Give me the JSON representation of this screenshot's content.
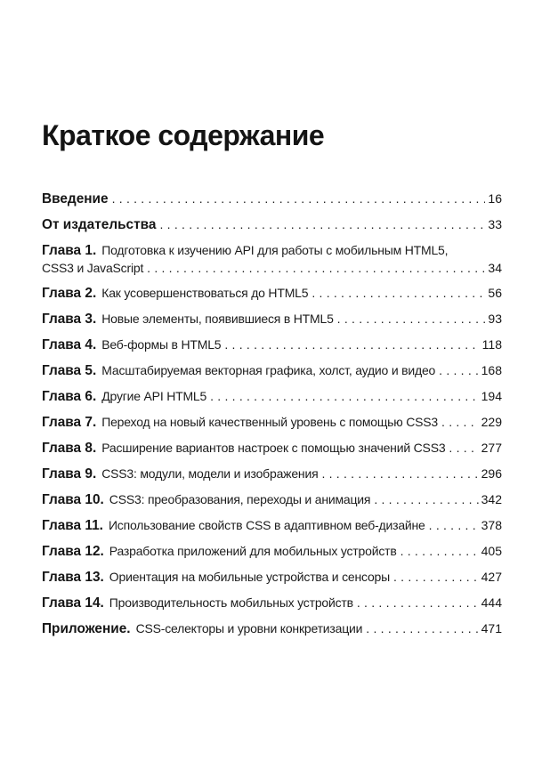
{
  "page_title": "Краткое содержание",
  "toc": {
    "entries": [
      {
        "label": "Введение",
        "page": "16"
      },
      {
        "label": "От издательства",
        "page": "33"
      },
      {
        "label": "Глава 1.",
        "text": "Подготовка к изучению API для работы с мобильным HTML5,",
        "text2": "CSS3 и JavaScript",
        "page": "34"
      },
      {
        "label": "Глава 2.",
        "text": "Как усовершенствоваться до HTML5",
        "page": "56"
      },
      {
        "label": "Глава 3.",
        "text": "Новые элементы, появившиеся в HTML5",
        "page": "93"
      },
      {
        "label": "Глава 4.",
        "text": "Веб-формы в HTML5",
        "page": "118"
      },
      {
        "label": "Глава 5.",
        "text": "Масштабируемая векторная графика, холст, аудио и видео",
        "page": "168"
      },
      {
        "label": "Глава 6.",
        "text": "Другие API HTML5",
        "page": "194"
      },
      {
        "label": "Глава 7.",
        "text": "Переход на новый качественный уровень с помощью CSS3",
        "page": "229"
      },
      {
        "label": "Глава 8.",
        "text": "Расширение вариантов настроек с помощью значений CSS3",
        "page": "277"
      },
      {
        "label": "Глава 9.",
        "text": "CSS3: модули, модели и изображения",
        "page": "296"
      },
      {
        "label": "Глава 10.",
        "text": "CSS3: преобразования, переходы и анимация",
        "page": "342"
      },
      {
        "label": "Глава 11.",
        "text": "Использование свойств CSS в адаптивном веб-дизайне",
        "page": "378"
      },
      {
        "label": "Глава 12.",
        "text": "Разработка приложений для мобильных устройств",
        "page": "405"
      },
      {
        "label": "Глава 13.",
        "text": "Ориентация на мобильные устройства и сенсоры",
        "page": "427"
      },
      {
        "label": "Глава 14.",
        "text": "Производительность мобильных устройств",
        "page": "444"
      },
      {
        "label": "Приложение.",
        "text": "CSS-селекторы и уровни конкретизации",
        "page": "471"
      }
    ]
  }
}
